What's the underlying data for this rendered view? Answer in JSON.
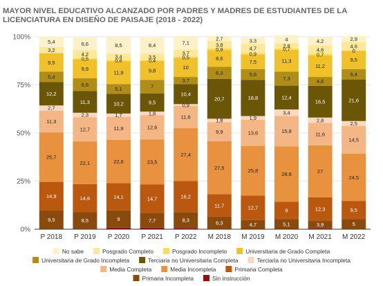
{
  "chart_data": {
    "type": "bar",
    "stacked": true,
    "percent": true,
    "title": "MAYOR NIVEL EDUCATIVO ALCANZADO POR PADRES Y MADRES DE ESTUDIANTES DE LA LICENCIATURA EN DISEÑO DE PAISAJE (2018 - 2022)",
    "categories": [
      "P 2018",
      "P 2019",
      "P 2020",
      "P 2021",
      "P 2022",
      "M 2018",
      "M 2019",
      "M 2020",
      "M 2021",
      "M 2022"
    ],
    "yticks": [
      "0%",
      "25%",
      "50%",
      "75%",
      "100%"
    ],
    "ylim": [
      0,
      100
    ],
    "grid": true,
    "legend_position": "bottom",
    "series": [
      {
        "name": "Sin instrucción",
        "color": "#9a0b0b",
        "label_color": "#ffffff",
        "values": [
          0.2,
          0.3,
          0.8,
          0.8,
          0.6,
          0.2,
          0.1,
          0.1,
          0.4,
          0.2
        ],
        "labels": [
          "",
          "",
          "",
          "",
          "",
          "",
          "",
          "",
          "",
          ""
        ]
      },
      {
        "name": "Primaria Incompleta",
        "color": "#8b4a0d",
        "label_color": "#ffffff",
        "values": [
          9.5,
          8.5,
          9,
          7.7,
          8.3,
          6.3,
          4.7,
          5.1,
          3.9,
          5
        ],
        "labels": [
          "9,5",
          "8,5",
          "9",
          "7,7",
          "8,3",
          "6,3",
          "4,7",
          "5,1",
          "3,9",
          "5"
        ]
      },
      {
        "name": "Primaria Completa",
        "color": "#b9580e",
        "label_color": "#ffffff",
        "values": [
          14.9,
          14.6,
          14.1,
          14.7,
          16.2,
          11.7,
          12.7,
          9,
          12.3,
          9.5
        ],
        "labels": [
          "14,9",
          "14,6",
          "14,1",
          "14,7",
          "16,2",
          "11,7",
          "12,7",
          "9",
          "12,3",
          "9,5"
        ]
      },
      {
        "name": "Media Incompleta",
        "color": "#e8913e",
        "label_color": "#222222",
        "values": [
          25.7,
          22.1,
          22.6,
          23.5,
          27.4,
          27.5,
          25.8,
          28.8,
          27,
          24.5
        ],
        "labels": [
          "25,7",
          "22,1",
          "22,6",
          "23,5",
          "27,4",
          "27,5",
          "25,8",
          "28,8",
          "27",
          "24,5"
        ]
      },
      {
        "name": "Media Completa",
        "color": "#f4b684",
        "label_color": "#222222",
        "values": [
          11.3,
          12.7,
          11.9,
          12.6,
          11.6,
          9.9,
          13.6,
          15.8,
          11.6,
          14.5
        ],
        "labels": [
          "11,3",
          "12,7",
          "11,9",
          "12,6",
          "11,6",
          "9,9",
          "13,6",
          "15,8",
          "11,6",
          "14,5"
        ]
      },
      {
        "name": "Terciaria no Universitaria Incompleta",
        "color": "#fad8bf",
        "label_color": "#222222",
        "values": [
          2.7,
          2.3,
          1.7,
          1.8,
          0.9,
          1.8,
          1.9,
          3.4,
          2.8,
          2.5
        ],
        "labels": [
          "2,7",
          "2,3",
          "1,7",
          "1,8",
          "0,9",
          "1,8",
          "1,9",
          "3,4",
          "2,8",
          "2,5"
        ]
      },
      {
        "name": "Terciaria no Universitaria Completa",
        "color": "#6b5608",
        "label_color": "#ffffff",
        "values": [
          12.2,
          11.3,
          10.2,
          9.5,
          10.4,
          20.7,
          18.8,
          12.4,
          16.5,
          21.6
        ],
        "labels": [
          "12,2",
          "11,3",
          "10,2",
          "9,5",
          "10,4",
          "20,7",
          "18,8",
          "12,4",
          "16,5",
          "21,6"
        ]
      },
      {
        "name": "Universitaria de Grado Incompleta",
        "color": "#b08d16",
        "label_color": "#222222",
        "values": [
          5.4,
          6.6,
          5.1,
          7,
          3.7,
          6.3,
          5.6,
          7.3,
          4.6,
          5.4
        ],
        "labels": [
          "5,4",
          "6,6",
          "5,1",
          "7",
          "3,7",
          "6,3",
          "5,6",
          "7,3",
          "4,6",
          "5,4"
        ]
      },
      {
        "name": "Universitaria de Grado Completa",
        "color": "#f0c12a",
        "label_color": "#222222",
        "values": [
          9.5,
          9.9,
          11.9,
          9.8,
          10,
          8.6,
          7.5,
          11.3,
          11.2,
          9.5
        ],
        "labels": [
          "9,5",
          "9,9",
          "11,9",
          "9,8",
          "10",
          "8,6",
          "7,5",
          "11,3",
          "11,2",
          "9,5"
        ]
      },
      {
        "name": "Posgrado Incompleto",
        "color": "#fcdc55",
        "label_color": "#222222",
        "values": [
          0.1,
          0.5,
          0.6,
          0.4,
          0.5,
          0.9,
          0.9,
          0.7,
          0.7,
          0.1
        ],
        "labels": [
          "",
          "0,5",
          "0,6",
          "0,4",
          "0,5",
          "0,9",
          "0,9",
          "0,7",
          "0,7",
          "0"
        ]
      },
      {
        "name": "Posgrado Completo",
        "color": "#fde89a",
        "label_color": "#222222",
        "values": [
          3.2,
          4.2,
          3.4,
          3.5,
          3.7,
          3.8,
          4.7,
          2.8,
          4.6,
          4.6
        ],
        "labels": [
          "3,2",
          "4,2",
          "3,4",
          "3,5",
          "3,7",
          "3,8",
          "4,7",
          "2,8",
          "4,6",
          "4,6"
        ]
      },
      {
        "name": "No sabe",
        "color": "#fdf1c9",
        "label_color": "#222222",
        "values": [
          5.4,
          6.6,
          8.5,
          8.4,
          7.1,
          2.7,
          3.3,
          4,
          4.2,
          2.9
        ],
        "labels": [
          "5,4",
          "6,6",
          "8,5",
          "8,4",
          "7,1",
          "2,7",
          "3,3",
          "4",
          "4,2",
          "2,9"
        ]
      }
    ],
    "legend_order": [
      "No sabe",
      "Posgrado Completo",
      "Posgrado Incompleto",
      "Universitaria de Grado Completa",
      "Universitaria de Grado Incompleta",
      "Terciaria no Universitaria Completa",
      "Terciaria no Universitaria Incompleta",
      "Media Completa",
      "Media Incompleta",
      "Primaria Completa",
      "Primaria Incompleta",
      "Sin instrucción"
    ]
  }
}
